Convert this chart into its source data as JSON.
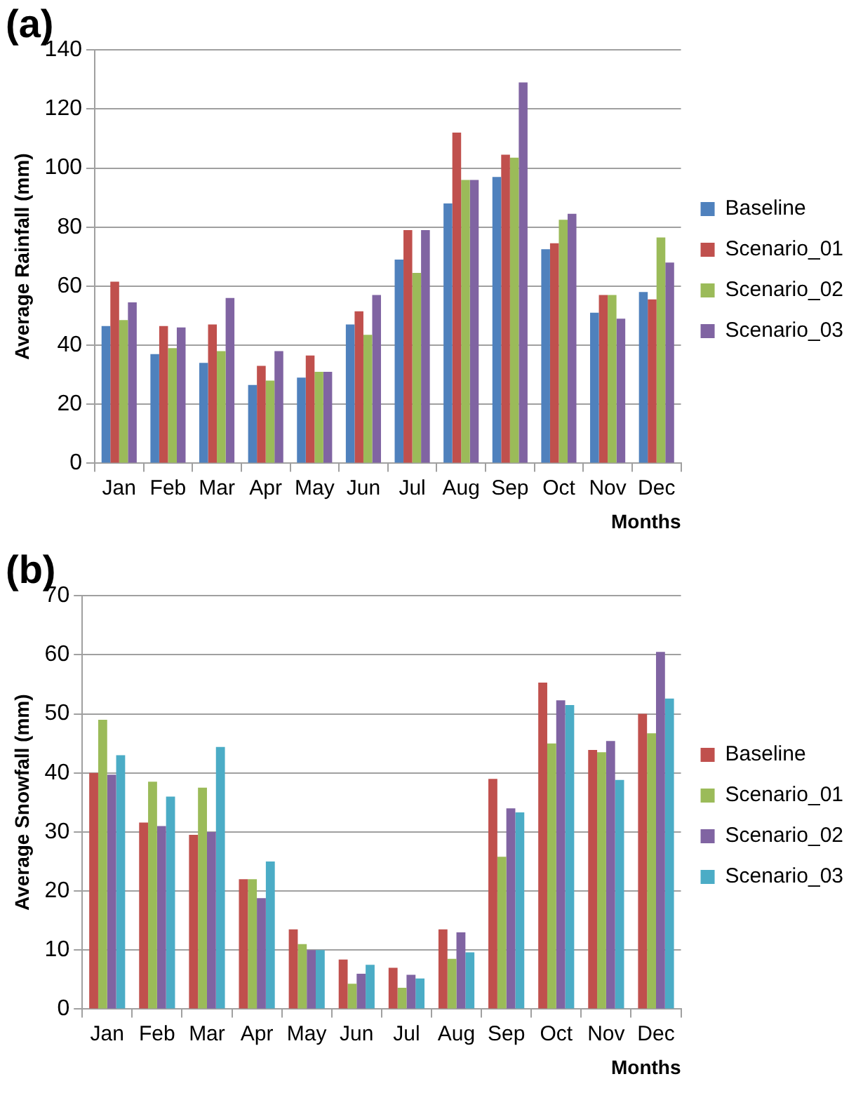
{
  "chart_data": [
    {
      "type": "bar",
      "title": "(a)",
      "xlabel": "Months",
      "ylabel": "Average Rainfall (mm)",
      "categories": [
        "Jan",
        "Feb",
        "Mar",
        "Apr",
        "May",
        "Jun",
        "Jul",
        "Aug",
        "Sep",
        "Oct",
        "Nov",
        "Dec"
      ],
      "ylim": [
        0,
        140
      ],
      "yticks": [
        0,
        20,
        40,
        60,
        80,
        100,
        120,
        140
      ],
      "grid": "y",
      "legend": "right",
      "series": [
        {
          "name": "Baseline",
          "color": "#4f81bd",
          "values": [
            46.5,
            37,
            34,
            26.5,
            29,
            47,
            69,
            88,
            97,
            72.5,
            51,
            58
          ]
        },
        {
          "name": "Scenario_01",
          "color": "#c0504d",
          "values": [
            61.5,
            46.5,
            47,
            33,
            36.5,
            51.5,
            79,
            112,
            104.5,
            74.5,
            57,
            55.5
          ]
        },
        {
          "name": "Scenario_02",
          "color": "#9bbb59",
          "values": [
            48.5,
            39,
            38,
            28,
            31,
            43.5,
            64.5,
            96,
            103.5,
            82.5,
            57,
            76.5
          ]
        },
        {
          "name": "Scenario_03",
          "color": "#8064a2",
          "values": [
            54.5,
            46,
            56,
            38,
            31,
            57,
            79,
            96,
            129,
            84.5,
            49,
            68
          ]
        }
      ]
    },
    {
      "type": "bar",
      "title": "(b)",
      "xlabel": "Months",
      "ylabel": "Average Snowfall (mm)",
      "categories": [
        "Jan",
        "Feb",
        "Mar",
        "Apr",
        "May",
        "Jun",
        "Jul",
        "Aug",
        "Sep",
        "Oct",
        "Nov",
        "Dec"
      ],
      "ylim": [
        0,
        70
      ],
      "yticks": [
        0,
        10,
        20,
        30,
        40,
        50,
        60,
        70
      ],
      "grid": "y",
      "legend": "right",
      "series": [
        {
          "name": "Baseline",
          "color": "#c0504d",
          "values": [
            40,
            31.6,
            29.5,
            22,
            13.5,
            8.4,
            7,
            13.5,
            39,
            55.3,
            43.9,
            50
          ]
        },
        {
          "name": "Scenario_01",
          "color": "#9bbb59",
          "values": [
            49,
            38.5,
            37.5,
            22,
            11,
            4.3,
            3.6,
            8.5,
            25.8,
            45,
            43.5,
            46.7
          ]
        },
        {
          "name": "Scenario_02",
          "color": "#8064a2",
          "values": [
            39.7,
            31,
            30,
            18.8,
            10,
            6,
            5.8,
            13,
            34,
            52.3,
            45.4,
            60.5
          ]
        },
        {
          "name": "Scenario_03",
          "color": "#4bacc6",
          "values": [
            43,
            36,
            44.4,
            25,
            10,
            7.5,
            5.2,
            9.6,
            33.3,
            51.5,
            38.8,
            52.6
          ]
        }
      ]
    }
  ]
}
